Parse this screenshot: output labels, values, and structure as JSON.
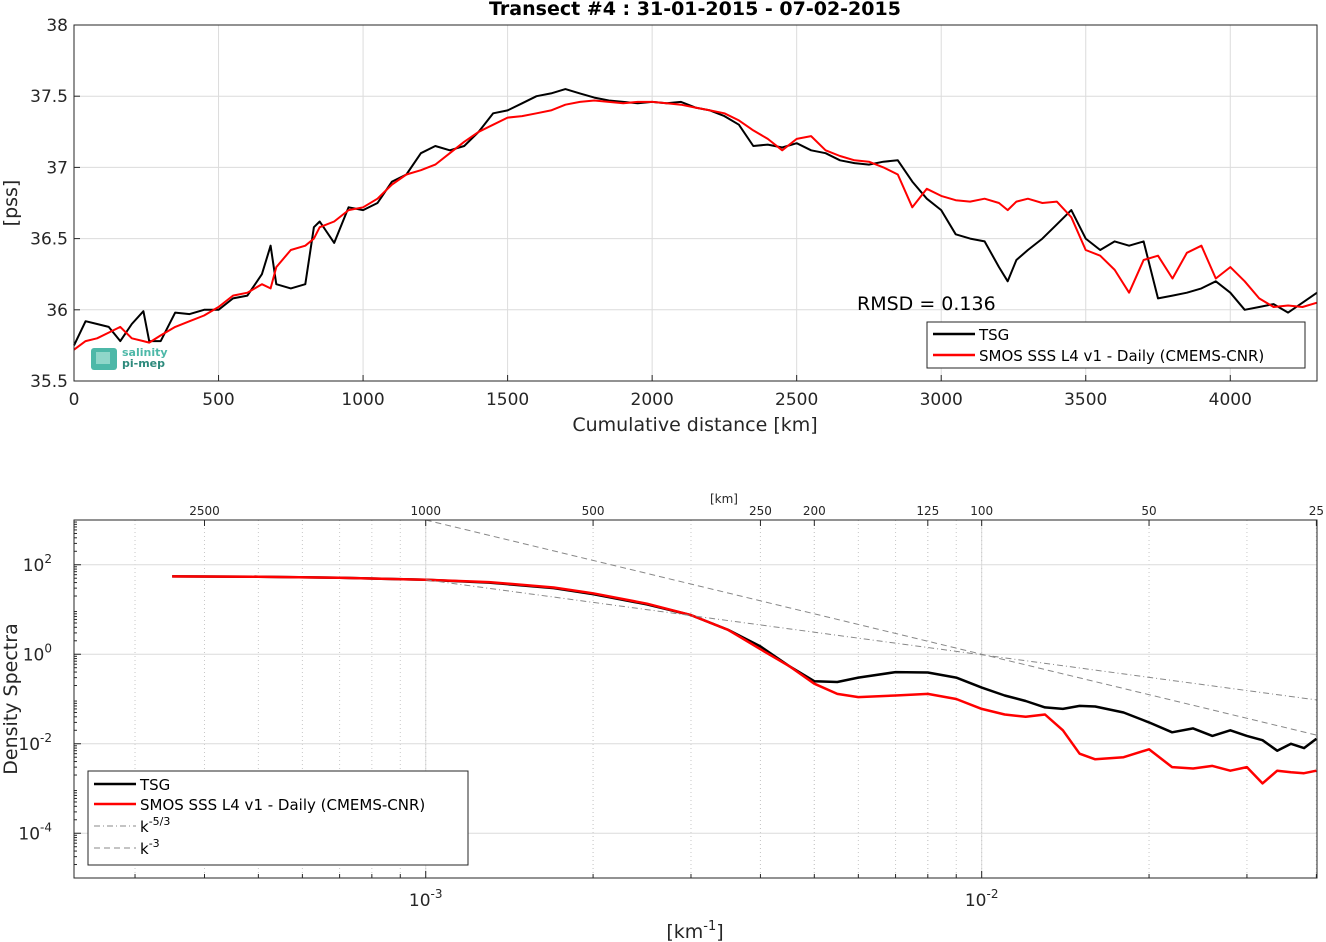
{
  "chart_data": [
    {
      "type": "line",
      "title": "Transect #4 : 31-01-2015 - 07-02-2015",
      "xlabel": "Cumulative distance [km]",
      "ylabel": "[pss]",
      "xlim": [
        0,
        4300
      ],
      "ylim": [
        35.5,
        38
      ],
      "xticks": [
        0,
        500,
        1000,
        1500,
        2000,
        2500,
        3000,
        3500,
        4000
      ],
      "yticks": [
        "35.5",
        "36",
        "36.5",
        "37",
        "37.5",
        "38"
      ],
      "grid": true,
      "legend_position": "bottom-right",
      "annotation": "RMSD = 0.136",
      "logo": {
        "line1": "salinity",
        "line2": "pi-mep"
      },
      "series": [
        {
          "name": "TSG",
          "color": "#000000",
          "x": [
            0,
            40,
            80,
            120,
            160,
            200,
            240,
            260,
            300,
            350,
            400,
            450,
            500,
            550,
            600,
            650,
            680,
            700,
            750,
            800,
            830,
            850,
            900,
            950,
            1000,
            1050,
            1100,
            1150,
            1200,
            1250,
            1300,
            1350,
            1400,
            1450,
            1500,
            1550,
            1600,
            1650,
            1700,
            1750,
            1800,
            1850,
            1900,
            1950,
            2000,
            2050,
            2100,
            2150,
            2200,
            2250,
            2300,
            2350,
            2400,
            2450,
            2500,
            2550,
            2600,
            2650,
            2700,
            2750,
            2800,
            2850,
            2900,
            2950,
            3000,
            3050,
            3100,
            3150,
            3200,
            3230,
            3260,
            3300,
            3350,
            3400,
            3450,
            3500,
            3550,
            3600,
            3650,
            3700,
            3750,
            3800,
            3850,
            3900,
            3950,
            4000,
            4050,
            4100,
            4150,
            4200,
            4250,
            4300
          ],
          "values": [
            35.75,
            35.92,
            35.9,
            35.88,
            35.78,
            35.9,
            35.99,
            35.78,
            35.78,
            35.98,
            35.97,
            36.0,
            36.0,
            36.08,
            36.1,
            36.25,
            36.45,
            36.18,
            36.15,
            36.18,
            36.58,
            36.62,
            36.47,
            36.72,
            36.7,
            36.75,
            36.9,
            36.95,
            37.1,
            37.15,
            37.12,
            37.15,
            37.25,
            37.38,
            37.4,
            37.45,
            37.5,
            37.52,
            37.55,
            37.52,
            37.49,
            37.47,
            37.46,
            37.45,
            37.46,
            37.45,
            37.46,
            37.42,
            37.4,
            37.36,
            37.3,
            37.15,
            37.16,
            37.14,
            37.17,
            37.12,
            37.1,
            37.05,
            37.03,
            37.02,
            37.04,
            37.05,
            36.9,
            36.78,
            36.7,
            36.53,
            36.5,
            36.48,
            36.3,
            36.2,
            36.35,
            36.42,
            36.5,
            36.6,
            36.7,
            36.5,
            36.42,
            36.48,
            36.45,
            36.48,
            36.08,
            36.1,
            36.12,
            36.15,
            36.2,
            36.12,
            36.0,
            36.02,
            36.04,
            35.98,
            36.05,
            36.12
          ]
        },
        {
          "name": "SMOS SSS L4 v1 - Daily (CMEMS-CNR)",
          "color": "#ff0000",
          "x": [
            0,
            40,
            80,
            120,
            160,
            200,
            240,
            260,
            300,
            350,
            400,
            450,
            500,
            550,
            600,
            650,
            680,
            700,
            750,
            800,
            830,
            850,
            900,
            950,
            1000,
            1050,
            1100,
            1150,
            1200,
            1250,
            1300,
            1350,
            1400,
            1450,
            1500,
            1550,
            1600,
            1650,
            1700,
            1750,
            1800,
            1850,
            1900,
            1950,
            2000,
            2050,
            2100,
            2150,
            2200,
            2250,
            2300,
            2350,
            2400,
            2450,
            2500,
            2550,
            2600,
            2650,
            2700,
            2750,
            2800,
            2850,
            2900,
            2950,
            3000,
            3050,
            3100,
            3150,
            3200,
            3230,
            3260,
            3300,
            3350,
            3400,
            3450,
            3500,
            3550,
            3600,
            3650,
            3700,
            3750,
            3800,
            3850,
            3900,
            3950,
            4000,
            4050,
            4100,
            4150,
            4200,
            4250,
            4300
          ],
          "values": [
            35.72,
            35.78,
            35.8,
            35.84,
            35.88,
            35.8,
            35.78,
            35.77,
            35.82,
            35.88,
            35.92,
            35.96,
            36.02,
            36.1,
            36.12,
            36.18,
            36.15,
            36.3,
            36.42,
            36.45,
            36.5,
            36.58,
            36.62,
            36.7,
            36.72,
            36.78,
            36.88,
            36.95,
            36.98,
            37.02,
            37.1,
            37.18,
            37.25,
            37.3,
            37.35,
            37.36,
            37.38,
            37.4,
            37.44,
            37.46,
            37.47,
            37.46,
            37.45,
            37.46,
            37.46,
            37.45,
            37.44,
            37.42,
            37.4,
            37.38,
            37.33,
            37.26,
            37.2,
            37.12,
            37.2,
            37.22,
            37.12,
            37.08,
            37.05,
            37.04,
            37.0,
            36.95,
            36.72,
            36.85,
            36.8,
            36.77,
            36.76,
            36.78,
            36.75,
            36.7,
            36.76,
            36.78,
            36.75,
            36.76,
            36.65,
            36.42,
            36.38,
            36.28,
            36.12,
            36.35,
            36.38,
            36.22,
            36.4,
            36.45,
            36.22,
            36.3,
            36.2,
            36.08,
            36.02,
            36.03,
            36.02,
            36.05
          ]
        }
      ]
    },
    {
      "type": "line",
      "xlabel": "[km-1]",
      "ylabel": "Density Spectra",
      "top_axis_label": "[km]",
      "x_scale": "log",
      "y_scale": "log",
      "xlim": [
        0.000233,
        0.0401
      ],
      "ylim": [
        1e-05,
        1000
      ],
      "xticks": [
        0.001,
        0.01
      ],
      "xtick_labels": [
        {
          "base": "10",
          "exp": "-3"
        },
        {
          "base": "10",
          "exp": "-2"
        }
      ],
      "yticks": [
        0.0001,
        0.01,
        1,
        100
      ],
      "ytick_labels": [
        {
          "base": "10",
          "exp": "-4"
        },
        {
          "base": "10",
          "exp": "-2"
        },
        {
          "base": "10",
          "exp": "0"
        },
        {
          "base": "10",
          "exp": "2"
        }
      ],
      "top_ticks": [
        2500,
        1000,
        500,
        250,
        200,
        125,
        100,
        50,
        25
      ],
      "top_tick_labels": [
        "2500",
        "1000",
        "500",
        "250",
        "200",
        "125",
        "100",
        "50",
        "25"
      ],
      "xlabel_parts": {
        "base": "[km",
        "exp": "-1",
        "end": "]"
      },
      "grid": true,
      "legend_position": "bottom-left",
      "series": [
        {
          "name": "TSG",
          "color": "#000000",
          "x": [
            0.00035,
            0.0005,
            0.0007,
            0.001,
            0.0013,
            0.0017,
            0.002,
            0.0025,
            0.003,
            0.0035,
            0.004,
            0.0045,
            0.005,
            0.0055,
            0.006,
            0.007,
            0.008,
            0.009,
            0.01,
            0.011,
            0.012,
            0.013,
            0.014,
            0.015,
            0.016,
            0.018,
            0.02,
            0.022,
            0.024,
            0.026,
            0.028,
            0.03,
            0.032,
            0.034,
            0.036,
            0.038,
            0.04
          ],
          "values": [
            55,
            54,
            51,
            46,
            40,
            30,
            22,
            13,
            7.5,
            3.5,
            1.5,
            0.55,
            0.25,
            0.24,
            0.3,
            0.4,
            0.39,
            0.3,
            0.18,
            0.12,
            0.09,
            0.065,
            0.06,
            0.07,
            0.068,
            0.05,
            0.03,
            0.018,
            0.022,
            0.015,
            0.02,
            0.015,
            0.012,
            0.007,
            0.01,
            0.008,
            0.013
          ]
        },
        {
          "name": "SMOS SSS L4 v1 - Daily (CMEMS-CNR)",
          "color": "#ff0000",
          "x": [
            0.00035,
            0.0005,
            0.0007,
            0.001,
            0.0013,
            0.0017,
            0.002,
            0.0025,
            0.003,
            0.0035,
            0.004,
            0.0045,
            0.005,
            0.0055,
            0.006,
            0.007,
            0.008,
            0.009,
            0.01,
            0.011,
            0.012,
            0.013,
            0.014,
            0.015,
            0.016,
            0.018,
            0.02,
            0.022,
            0.024,
            0.026,
            0.028,
            0.03,
            0.032,
            0.034,
            0.036,
            0.038,
            0.04
          ],
          "values": [
            55,
            54,
            51,
            46,
            41,
            31,
            23,
            13.5,
            7.5,
            3.5,
            1.3,
            0.55,
            0.22,
            0.13,
            0.11,
            0.12,
            0.13,
            0.1,
            0.06,
            0.045,
            0.04,
            0.045,
            0.02,
            0.006,
            0.0045,
            0.005,
            0.0075,
            0.003,
            0.0028,
            0.0032,
            0.0025,
            0.003,
            0.0013,
            0.0025,
            0.0023,
            0.0022,
            0.0025
          ]
        },
        {
          "name": "k-5/3",
          "color": "#888888",
          "dash": "dash-dot",
          "x": [
            0.001,
            0.0401
          ],
          "values": [
            46,
            0.095
          ]
        },
        {
          "name": "k-3",
          "color": "#888888",
          "dash": "dashed",
          "x": [
            0.001,
            0.0401
          ],
          "values": [
            1000,
            0.0155
          ]
        }
      ],
      "legend_entries": [
        {
          "label": "TSG",
          "color": "#000000",
          "style": "solid"
        },
        {
          "label": "SMOS SSS L4 v1 - Daily (CMEMS-CNR)",
          "color": "#ff0000",
          "style": "solid"
        },
        {
          "label_base": "k",
          "label_exp": "-5/3",
          "color": "#888888",
          "style": "dash-dot"
        },
        {
          "label_base": "k",
          "label_exp": "-3",
          "color": "#888888",
          "style": "dashed"
        }
      ]
    }
  ]
}
